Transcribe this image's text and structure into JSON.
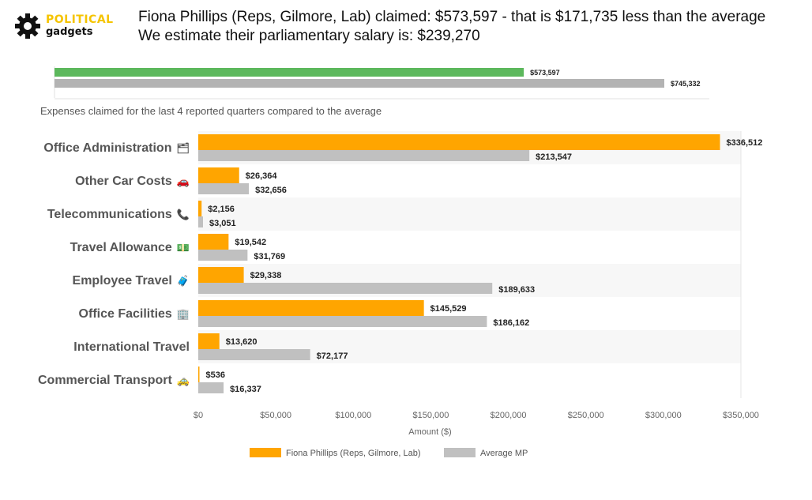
{
  "logo": {
    "top": "POLITICAL",
    "bottom": "gadgets",
    "icon": "gear-icon"
  },
  "headline": {
    "line1": "Fiona Phillips (Reps, Gilmore, Lab) claimed: $573,597 - that is $171,735 less than the average",
    "line2": "We estimate their parliamentary salary is: $239,270"
  },
  "subtitle": "Expenses claimed for the last 4 reported quarters compared to the average",
  "colors": {
    "mp": "#ffa500",
    "average": "#c0c0c0",
    "total_mp": "#5cb85c",
    "total_average": "#b3b3b3"
  },
  "chart_data": [
    {
      "type": "bar",
      "orientation": "horizontal",
      "series": [
        {
          "values": [
            573597
          ],
          "label": "$573,597"
        },
        {
          "values": [
            745332
          ],
          "label": "$745,332"
        }
      ],
      "xlim": [
        0,
        745332
      ]
    },
    {
      "type": "bar",
      "orientation": "horizontal",
      "categories": [
        {
          "name": "Office Administration",
          "emoji": "🗂"
        },
        {
          "name": "Other Car Costs",
          "emoji": "🚗"
        },
        {
          "name": "Telecommunications",
          "emoji": "📞"
        },
        {
          "name": "Travel Allowance",
          "emoji": "💵"
        },
        {
          "name": "Employee Travel",
          "emoji": "🧳"
        },
        {
          "name": "Office Facilities",
          "emoji": "🏢"
        },
        {
          "name": "International Travel",
          "emoji": ""
        },
        {
          "name": "Commercial Transport",
          "emoji": "🚕"
        }
      ],
      "series": [
        {
          "name": "Fiona Phillips  (Reps, Gilmore, Lab)",
          "values": [
            336512,
            26364,
            2156,
            19542,
            29338,
            145529,
            13620,
            536
          ],
          "labels": [
            "$336,512",
            "$26,364",
            "$2,156",
            "$19,542",
            "$29,338",
            "$145,529",
            "$13,620",
            "$536"
          ]
        },
        {
          "name": "Average MP",
          "values": [
            213547,
            32656,
            3051,
            31769,
            189633,
            186162,
            72177,
            16337
          ],
          "labels": [
            "$213,547",
            "$32,656",
            "$3,051",
            "$31,769",
            "$189,633",
            "$186,162",
            "$72,177",
            "$16,337"
          ]
        }
      ],
      "xlabel": "Amount ($)",
      "xlim": [
        0,
        350000
      ],
      "xticks": [
        0,
        50000,
        100000,
        150000,
        200000,
        250000,
        300000,
        350000
      ],
      "xtick_labels": [
        "$0",
        "$50,000",
        "$100,000",
        "$150,000",
        "$200,000",
        "$250,000",
        "$300,000",
        "$350,000"
      ],
      "legend_position": "bottom"
    }
  ]
}
